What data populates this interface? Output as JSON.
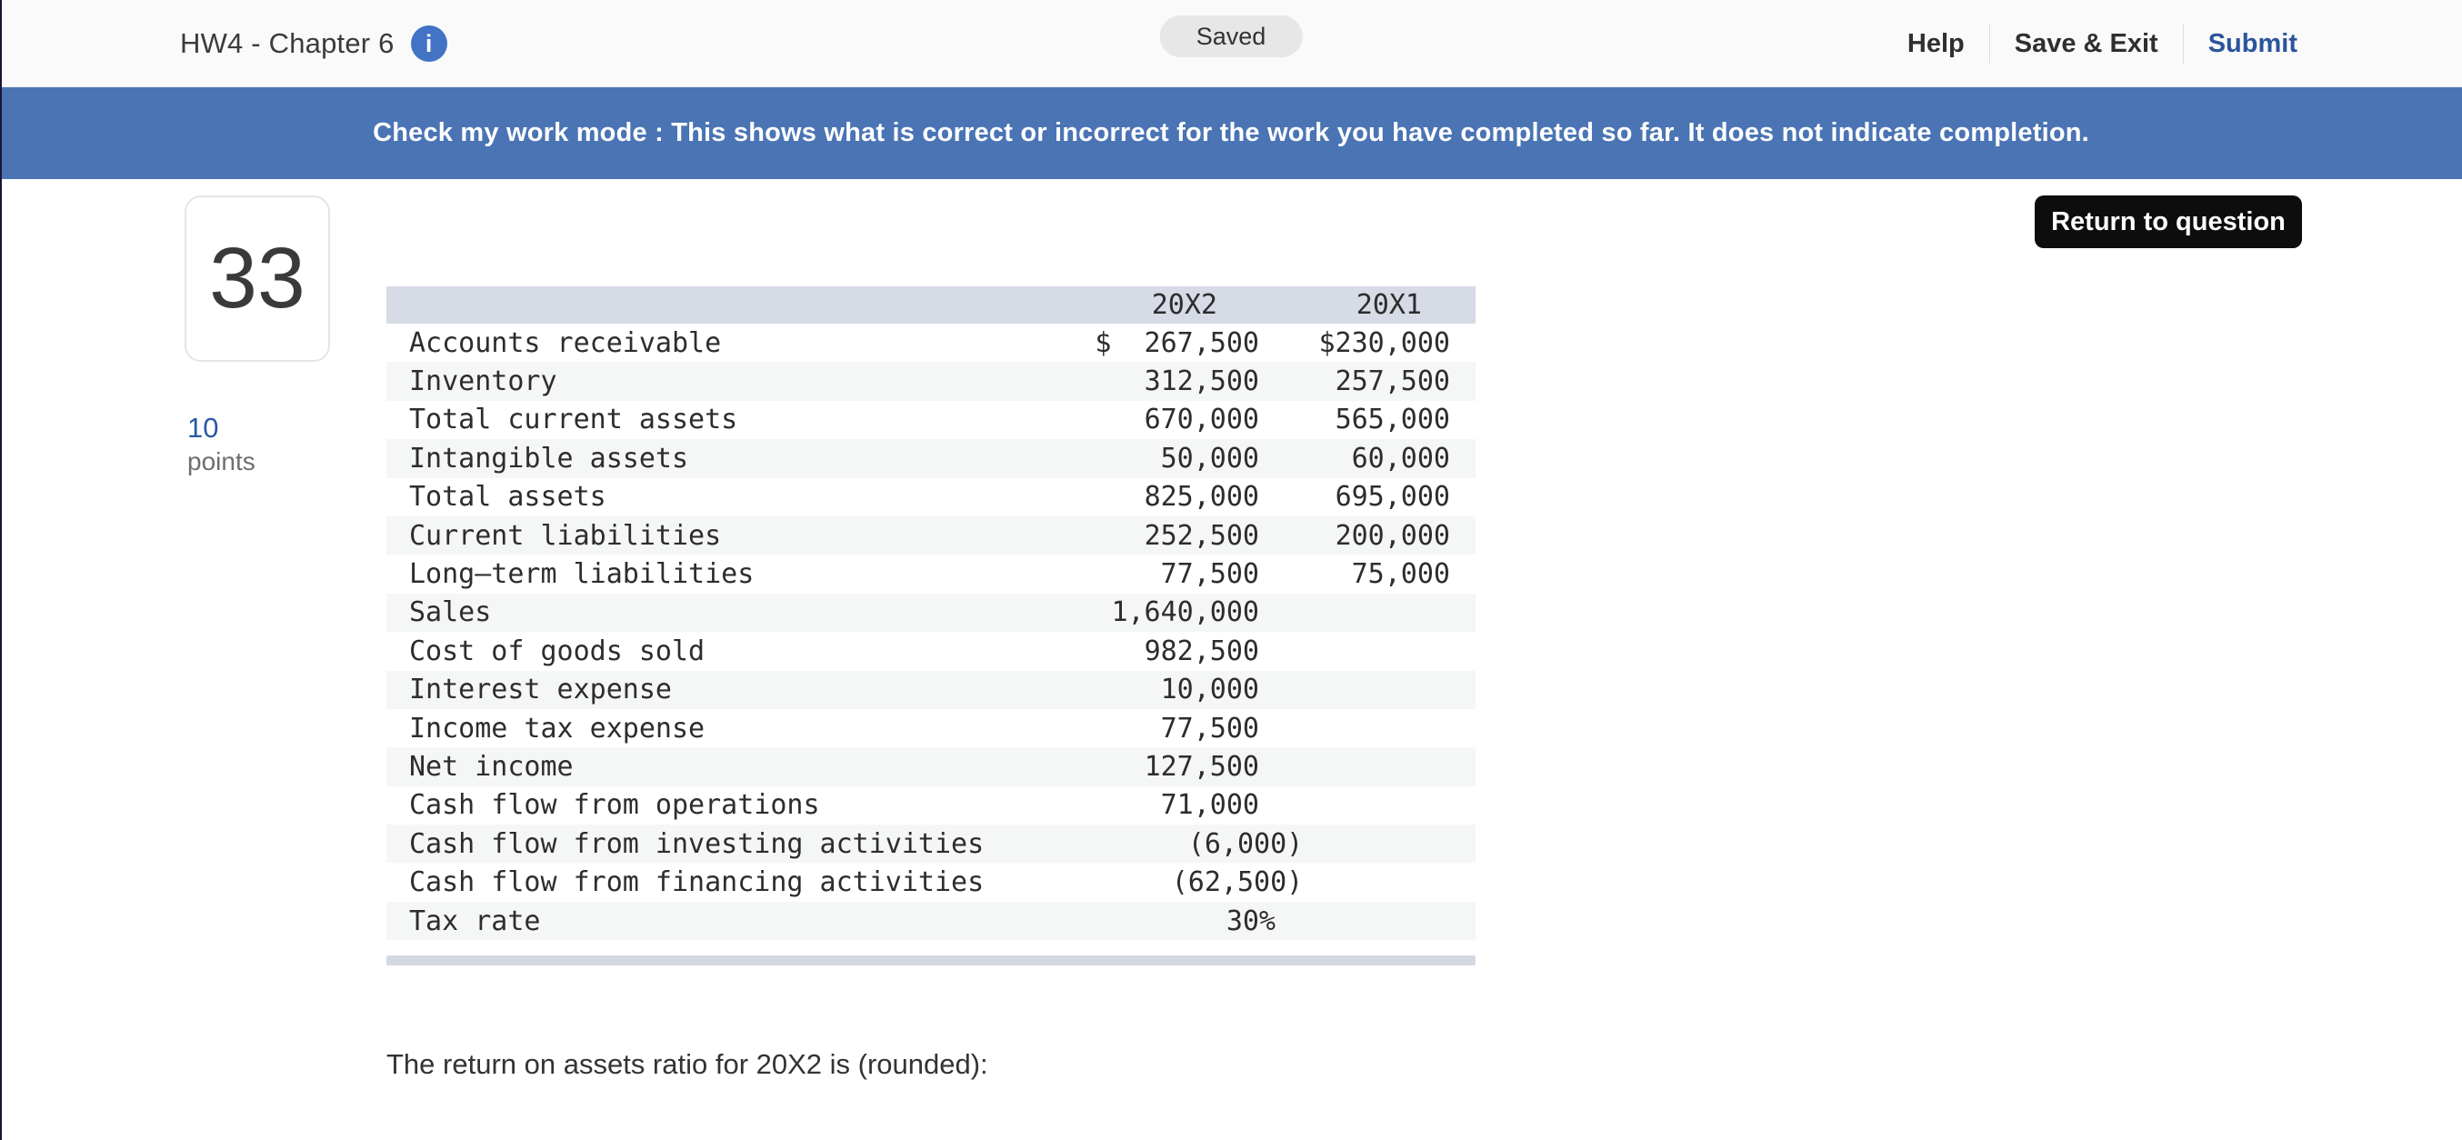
{
  "header": {
    "title": "HW4 - Chapter 6",
    "info_icon": "i",
    "saved_badge": "Saved",
    "nav": [
      "Help",
      "Save & Exit",
      "Submit"
    ]
  },
  "banner": {
    "message": "Check my work mode : This shows what is correct or incorrect for the work you have completed so far. It does not indicate completion."
  },
  "question": {
    "number": "33",
    "points_value": "10",
    "points_label": "points",
    "prompt": "The return on assets ratio for 20X2 is (rounded):"
  },
  "return_button_label": "Return to question",
  "table": {
    "columns": [
      "20X2",
      "20X1"
    ],
    "rows": [
      {
        "label": "Accounts receivable",
        "x2": "$  267,500",
        "x1": "$230,000"
      },
      {
        "label": "Inventory",
        "x2": "312,500",
        "x1": "257,500"
      },
      {
        "label": "Total current assets",
        "x2": "670,000",
        "x1": "565,000"
      },
      {
        "label": "Intangible assets",
        "x2": "50,000",
        "x1": "60,000"
      },
      {
        "label": "Total assets",
        "x2": "825,000",
        "x1": "695,000"
      },
      {
        "label": "Current liabilities",
        "x2": "252,500",
        "x1": "200,000"
      },
      {
        "label": "Long–term liabilities",
        "x2": "77,500",
        "x1": "75,000"
      },
      {
        "label": "Sales",
        "x2": "1,640,000",
        "x1": ""
      },
      {
        "label": "Cost of goods sold",
        "x2": "982,500",
        "x1": ""
      },
      {
        "label": "Interest expense",
        "x2": "10,000",
        "x1": ""
      },
      {
        "label": "Income tax expense",
        "x2": "77,500",
        "x1": ""
      },
      {
        "label": "Net income",
        "x2": "127,500",
        "x1": ""
      },
      {
        "label": "Cash flow from operations",
        "x2": "71,000",
        "x1": ""
      },
      {
        "label": "Cash flow from investing activities",
        "x2": "(6,000)",
        "x1": ""
      },
      {
        "label": "Cash flow from financing activities",
        "x2": "(62,500)",
        "x1": ""
      },
      {
        "label": "Tax rate",
        "x2": "30%",
        "x1": ""
      }
    ]
  },
  "colors": {
    "banner_blue": "#4a74b4",
    "link_blue": "#2b549c",
    "info_icon_blue": "#4273c4",
    "table_header_bg": "#d6dbe6",
    "row_alt_bg": "#f5f6f6",
    "scroll_strip": "#d3d9e3",
    "return_button_bg": "#0d0d0d"
  }
}
